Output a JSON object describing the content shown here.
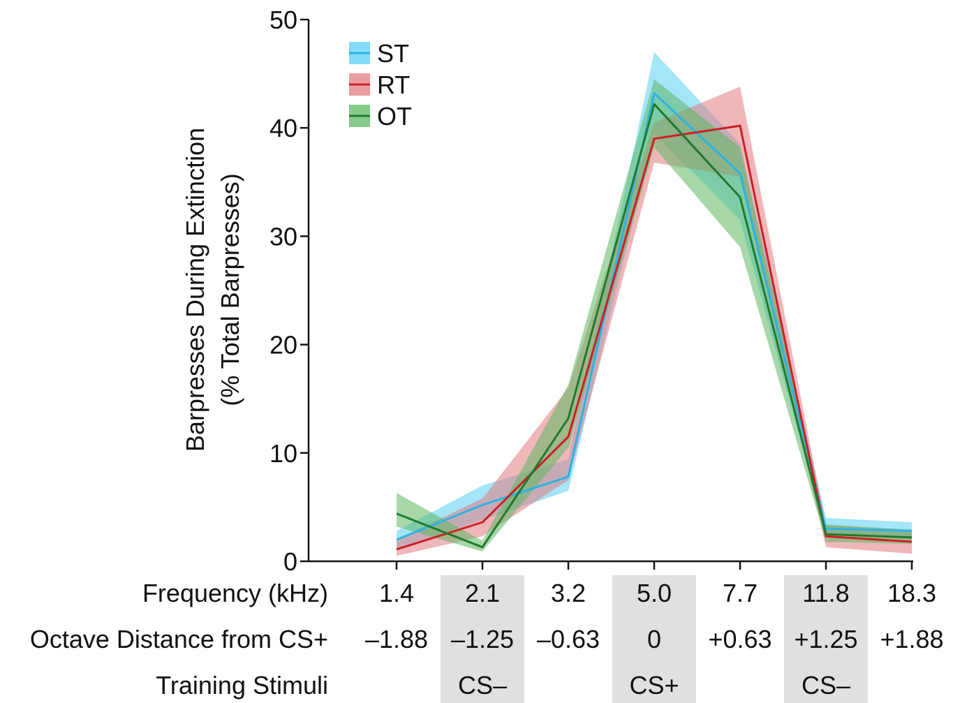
{
  "chart_data": {
    "type": "line",
    "ylabel_line1": "Barpresses During Extinction",
    "ylabel_line2": "(% Total Barpresses)",
    "ylim": [
      0,
      50
    ],
    "yticks": [
      0,
      10,
      20,
      30,
      40,
      50
    ],
    "categories": [
      "1.4",
      "2.1",
      "3.2",
      "5.0",
      "7.7",
      "11.8",
      "18.3"
    ],
    "x_rows": [
      {
        "label": "Frequency (kHz)",
        "values": [
          "1.4",
          "2.1",
          "3.2",
          "5.0",
          "7.7",
          "11.8",
          "18.3"
        ]
      },
      {
        "label": "Octave Distance from CS+",
        "values": [
          "–1.88",
          "–1.25",
          "–0.63",
          "0",
          "+0.63",
          "+1.25",
          "+1.88"
        ]
      },
      {
        "label": "Training Stimuli",
        "values": [
          "",
          "CS–",
          "",
          "CS+",
          "",
          "CS–",
          ""
        ]
      }
    ],
    "highlighted_columns": [
      1,
      3,
      5
    ],
    "highlight_color": "#e0e0e0",
    "legend_position": "top-left",
    "grid": false,
    "series": [
      {
        "name": "ST",
        "line_color": "#2ab3e6",
        "band_color": "#5bd0f5",
        "values": [
          2.0,
          5.2,
          7.8,
          43.2,
          35.8,
          3.0,
          2.8
        ],
        "lower": [
          1.2,
          3.8,
          6.5,
          39.5,
          31.5,
          2.5,
          2.2
        ],
        "upper": [
          2.8,
          7.0,
          9.4,
          47.0,
          38.5,
          4.0,
          3.6
        ]
      },
      {
        "name": "RT",
        "line_color": "#cc1f25",
        "band_color": "#e27c80",
        "values": [
          1.1,
          3.6,
          11.5,
          39.0,
          40.2,
          2.3,
          1.8
        ],
        "lower": [
          0.5,
          2.3,
          7.5,
          36.8,
          35.5,
          1.3,
          0.7
        ],
        "upper": [
          2.0,
          5.8,
          16.0,
          40.5,
          43.8,
          3.3,
          2.9
        ]
      },
      {
        "name": "OT",
        "line_color": "#1f7a2c",
        "band_color": "#5db862",
        "values": [
          4.4,
          1.3,
          13.2,
          42.2,
          33.6,
          2.5,
          2.2
        ],
        "lower": [
          3.2,
          0.9,
          10.5,
          38.2,
          29.0,
          1.8,
          1.6
        ],
        "upper": [
          6.3,
          1.9,
          16.3,
          44.5,
          38.2,
          3.4,
          2.9
        ]
      }
    ]
  }
}
